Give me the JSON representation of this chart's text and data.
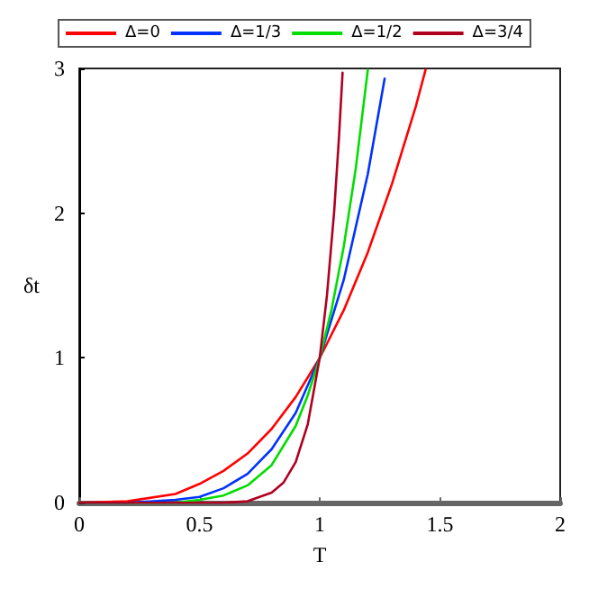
{
  "chart_data": {
    "type": "line",
    "xlabel": "T",
    "ylabel": "δt",
    "xlim": [
      0,
      2
    ],
    "ylim": [
      0,
      3
    ],
    "xticks": [
      0,
      0.5,
      1,
      1.5,
      2
    ],
    "yticks": [
      0,
      1,
      2,
      3
    ],
    "grid": false,
    "legend": "top",
    "marker": "none",
    "line_style": "solid",
    "series": [
      {
        "name": "Δ=0",
        "color": "#ff0000",
        "x": [
          0,
          0.2,
          0.4,
          0.5,
          0.6,
          0.7,
          0.8,
          0.9,
          1,
          1.1,
          1.2,
          1.3,
          1.4,
          1.44
        ],
        "values": [
          0,
          0.01,
          0.06,
          0.13,
          0.22,
          0.34,
          0.51,
          0.73,
          1,
          1.33,
          1.73,
          2.2,
          2.74,
          2.99
        ]
      },
      {
        "name": "Δ=1/3",
        "color": "#0033ff",
        "x": [
          0,
          0.2,
          0.4,
          0.5,
          0.6,
          0.7,
          0.8,
          0.9,
          1,
          1.1,
          1.2,
          1.27
        ],
        "values": [
          0,
          0,
          0.02,
          0.04,
          0.1,
          0.2,
          0.37,
          0.62,
          1,
          1.54,
          2.27,
          2.93
        ]
      },
      {
        "name": "Δ=1/2",
        "color": "#00dd00",
        "x": [
          0,
          0.4,
          0.5,
          0.6,
          0.7,
          0.8,
          0.9,
          0.95,
          1,
          1.05,
          1.1,
          1.15,
          1.2
        ],
        "values": [
          0,
          0,
          0.02,
          0.05,
          0.12,
          0.26,
          0.53,
          0.74,
          1,
          1.34,
          1.77,
          2.31,
          2.99
        ]
      },
      {
        "name": "Δ=3/4",
        "color": "#b00020",
        "x": [
          0,
          0.5,
          0.6,
          0.7,
          0.8,
          0.85,
          0.9,
          0.95,
          1,
          1.03,
          1.06,
          1.08,
          1.095
        ],
        "values": [
          0,
          0,
          0,
          0.01,
          0.07,
          0.14,
          0.28,
          0.54,
          1,
          1.43,
          2.01,
          2.52,
          2.97
        ]
      }
    ]
  }
}
